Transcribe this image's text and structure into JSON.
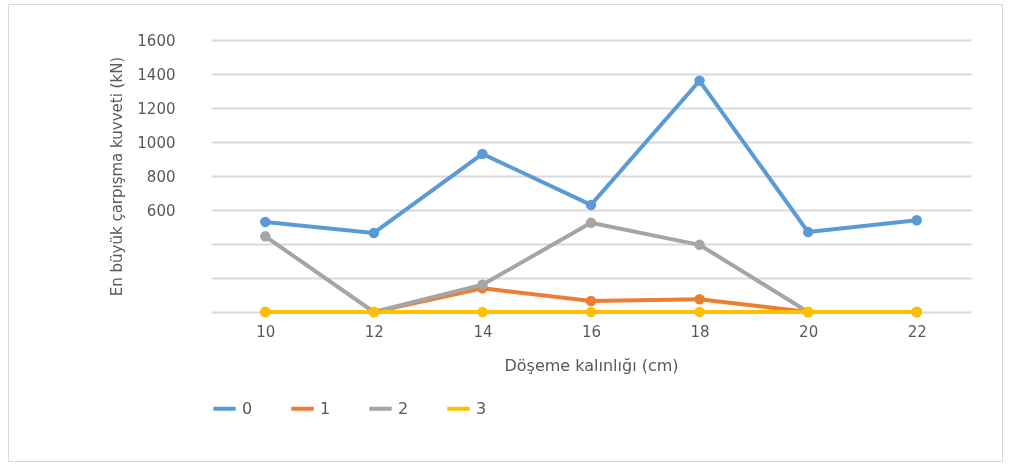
{
  "chart_data": {
    "type": "line",
    "xlabel": "Döşeme kalınlığı (cm)",
    "ylabel": "En büyük çarpışma kuvveti (kN)",
    "categories": [
      "10",
      "12",
      "14",
      "16",
      "18",
      "20",
      "22"
    ],
    "series": [
      {
        "name": "0",
        "color": "#5b9bd5",
        "values": [
          530,
          465,
          930,
          630,
          1360,
          470,
          540
        ]
      },
      {
        "name": "1",
        "color": "#ed7d31",
        "values": [
          0,
          0,
          140,
          65,
          75,
          0,
          0
        ]
      },
      {
        "name": "2",
        "color": "#a5a5a5",
        "values": [
          445,
          0,
          160,
          525,
          395,
          0,
          0
        ]
      },
      {
        "name": "3",
        "color": "#ffc000",
        "values": [
          0,
          0,
          0,
          0,
          0,
          0,
          0
        ]
      }
    ],
    "ylim": [
      0,
      1600
    ],
    "yticks": [
      {
        "value": 0,
        "label": null
      },
      {
        "value": 200,
        "label": null
      },
      {
        "value": 400,
        "label": null
      },
      600,
      800,
      1000,
      1200,
      1400,
      1600
    ],
    "grid": "y",
    "legend": "bottom",
    "marker": "circle",
    "line_style": "solid"
  }
}
